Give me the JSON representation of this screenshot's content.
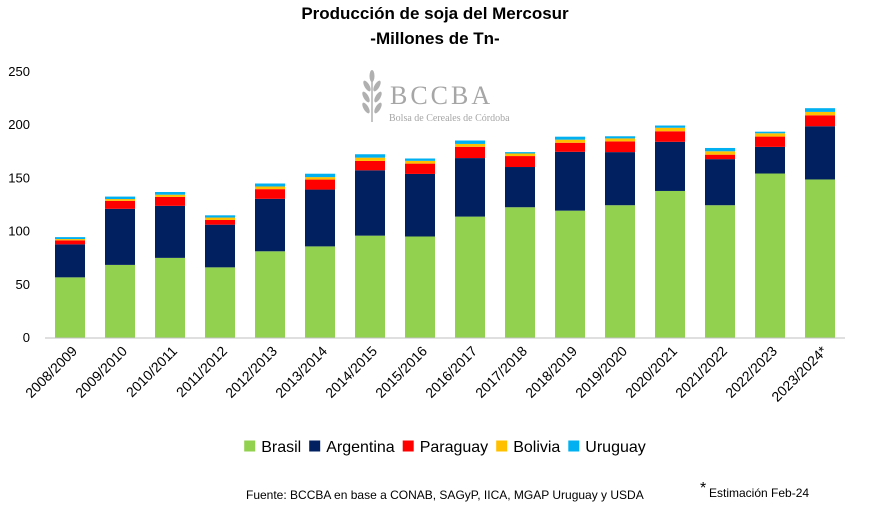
{
  "chart_data": {
    "type": "bar",
    "stacked": true,
    "title": "Producción de soja del Mercosur",
    "subtitle": "-Millones de Tn-",
    "xlabel": "",
    "ylabel": "",
    "ylim": [
      0,
      250
    ],
    "yticks": [
      0,
      50,
      100,
      150,
      200,
      250
    ],
    "grid": false,
    "legend_position": "bottom",
    "categories": [
      "2008/2009",
      "2009/2010",
      "2010/2011",
      "2011/2012",
      "2012/2013",
      "2013/2014",
      "2014/2015",
      "2015/2016",
      "2016/2017",
      "2017/2018",
      "2018/2019",
      "2019/2020",
      "2020/2021",
      "2021/2022",
      "2022/2023",
      "2023/2024*"
    ],
    "series": [
      {
        "name": "Brasil",
        "color": "#92d050",
        "values": [
          57,
          68.7,
          75.3,
          66.4,
          81.5,
          86.1,
          96.2,
          95.4,
          114.1,
          122.9,
          119.7,
          124.8,
          138.2,
          124.8,
          154.6,
          149
        ]
      },
      {
        "name": "Argentina",
        "color": "#002060",
        "values": [
          31,
          52.7,
          48.9,
          40.1,
          49.3,
          53.4,
          61.4,
          58.8,
          55,
          37.8,
          55.3,
          49.9,
          46.2,
          43.3,
          25,
          50
        ]
      },
      {
        "name": "Paraguay",
        "color": "#ff0000",
        "values": [
          3.8,
          7.5,
          8.4,
          4.4,
          9.1,
          9.4,
          8.8,
          9.7,
          10.6,
          10.3,
          8.5,
          10.1,
          9.9,
          4.2,
          9.7,
          10.3
        ]
      },
      {
        "name": "Bolivia",
        "color": "#ffc000",
        "values": [
          1.2,
          1.7,
          2.1,
          2.3,
          2.5,
          2.3,
          3.1,
          2.6,
          2.7,
          2.4,
          2.9,
          2.8,
          3.3,
          3.2,
          3.1,
          3.2
        ]
      },
      {
        "name": "Uruguay",
        "color": "#00b0f0",
        "values": [
          1.8,
          2.3,
          2.5,
          2.1,
          2.8,
          3.2,
          3.2,
          2.2,
          3.2,
          1.3,
          2.8,
          2,
          2.1,
          3.1,
          1.5,
          3.5
        ]
      }
    ],
    "annotations": {
      "source": "Fuente: BCCBA en base a CONAB, SAGyP, IICA, MGAP Uruguay y USDA",
      "estimate_mark": "*",
      "estimate_note": "Estimación Feb-24"
    }
  },
  "logo": {
    "name": "BCCBA",
    "tagline": "Bolsa de Cereales de Córdoba",
    "color": "#a6a6a6"
  }
}
